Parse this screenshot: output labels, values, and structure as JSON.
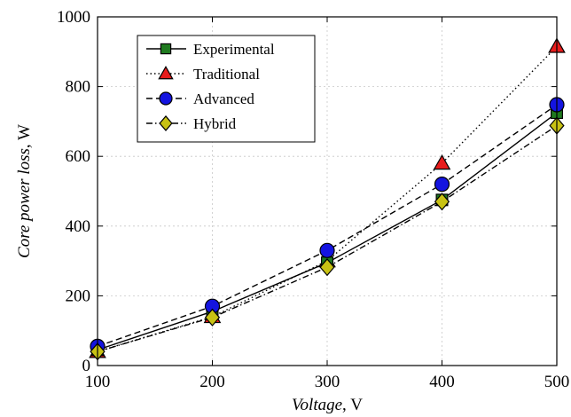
{
  "chart_data": {
    "type": "line",
    "title": "",
    "xlabel_italic": "Voltage",
    "xlabel_unit": ", V",
    "ylabel_italic": "Core power loss",
    "ylabel_unit": ", W",
    "xlim": [
      100,
      500
    ],
    "ylim": [
      0,
      1000
    ],
    "xticks": [
      100,
      200,
      300,
      400,
      500
    ],
    "yticks": [
      0,
      200,
      400,
      600,
      800,
      1000
    ],
    "grid": true,
    "legend_position": "top-left",
    "x": [
      100,
      200,
      300,
      400,
      500
    ],
    "series": [
      {
        "name": "Experimental",
        "values": [
          45,
          155,
          295,
          475,
          725
        ],
        "color": "#1f7a1f",
        "marker": "square",
        "line": "solid"
      },
      {
        "name": "Traditional",
        "values": [
          40,
          140,
          300,
          580,
          915
        ],
        "color": "#e81c1c",
        "marker": "triangle",
        "line": "dotted"
      },
      {
        "name": "Advanced",
        "values": [
          55,
          170,
          330,
          520,
          748
        ],
        "color": "#1414e0",
        "marker": "circle",
        "line": "dashed"
      },
      {
        "name": "Hybrid",
        "values": [
          40,
          138,
          282,
          470,
          688
        ],
        "color": "#c8c214",
        "marker": "diamond",
        "line": "dashdot"
      }
    ]
  }
}
